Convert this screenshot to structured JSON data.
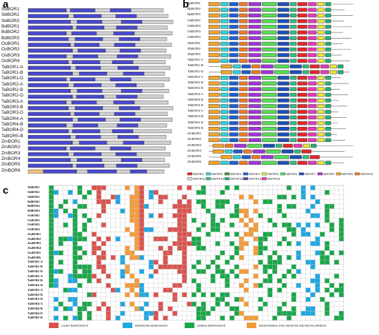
{
  "panels": {
    "a": "a",
    "b": "b",
    "c": "c"
  },
  "panel_a": {
    "genes": [
      "SbBOR1",
      "SbBOR2",
      "SbBOR3",
      "BdBOR1",
      "BdBOR2",
      "BdBOR3",
      "OsBOR1",
      "OsBOR2",
      "OsBOR3",
      "OsBOR4",
      "TaBOR1-A",
      "TaBOR1-B",
      "TaBOR1-D",
      "TaBOR2-A",
      "TaBOR2-B",
      "TaBOR2-D",
      "TaBOR3-A",
      "TaBOR3-B",
      "TaBOR3-D",
      "TaBOR4-A",
      "TaBOR4-B",
      "TaBOR4-D",
      "TaBOR5-B",
      "ZmBOR1",
      "ZmBOR2",
      "ZmBOR3",
      "ZmBOR4",
      "ZmBOR5",
      "ZmBOR6"
    ]
  },
  "panel_b": {
    "genes": [
      "BpBOR1",
      "BpBOR2",
      "BpBOR3",
      "OsBOR1",
      "OsBOR2",
      "OsBOR3",
      "OsBOR4",
      "SbBOR1",
      "SbBOR2",
      "SbBOR3",
      "TaBOR1-A",
      "TaBOR1-B",
      "TaBOR1-D",
      "TaBOR2-A",
      "TaBOR2-B",
      "TaBOR2-D",
      "TaBOR3-A",
      "TaBOR3-B",
      "TaBOR3-D",
      "TaBOR4-A",
      "TaBOR4-B",
      "TaBOR4-D",
      "TaBOR5-B",
      "ZmBOR1",
      "ZmBOR2",
      "ZmBOR3",
      "ZmBOR4",
      "ZmBOR5",
      "ZmBOR6"
    ],
    "motifs": [
      {
        "name": "MOTIF1",
        "color": "#e8262b"
      },
      {
        "name": "MOTIF2",
        "color": "#2fd4d9"
      },
      {
        "name": "MOTIF3",
        "color": "#3a9b2c"
      },
      {
        "name": "MOTIF4",
        "color": "#1f5fd6"
      },
      {
        "name": "MOTIF5",
        "color": "#e8e83a"
      },
      {
        "name": "MOTIF6",
        "color": "#55dd55"
      },
      {
        "name": "MOTIF7",
        "color": "#1e50b8"
      },
      {
        "name": "MOTIF8",
        "color": "#a235d8"
      },
      {
        "name": "MOTIF9",
        "color": "#f2a52e"
      },
      {
        "name": "MOTIF10",
        "color": "#f07a2a"
      },
      {
        "name": "MOTIF11",
        "color": "#e0e0e0"
      },
      {
        "name": "MOTIF12",
        "color": "#31c27a"
      },
      {
        "name": "MOTIF13",
        "color": "#1bb37a"
      },
      {
        "name": "MOTIF14",
        "color": "#6a3ea8"
      },
      {
        "name": "MOTIF15",
        "color": "#e83ab8"
      }
    ]
  },
  "panel_c": {
    "genes": [
      "SbBOR1",
      "SbBOR2",
      "SbBOR3",
      "BdBOR1",
      "BdBOR2",
      "BdBOR3",
      "OsBOR1",
      "OsBOR2",
      "OsBOR3",
      "OsBOR4",
      "ZmBOR1",
      "ZmBOR2",
      "ZmBOR3",
      "ZmBOR4",
      "ZmBOR5",
      "ZmBOR6",
      "TaBOR1-A",
      "TaBOR1-B",
      "TaBOR1-D",
      "TaBOR2-A",
      "TaBOR2-B",
      "TaBOR2-D",
      "TaBOR3-A",
      "TaBOR3-B",
      "TaBOR3-D",
      "TaBOR4-A",
      "TaBOR4-B",
      "TaBOR4-D",
      "TaBOR5-B"
    ],
    "categories": [
      {
        "name": "LIGHT RESPONSIVE",
        "color": "#d9534f"
      },
      {
        "name": "HORMONE RESPONSIVE",
        "color": "#1ea7e1"
      },
      {
        "name": "STRESS RESPONSIVE",
        "color": "#1aa64a"
      },
      {
        "name": "RESPONSIBLE FOR GROWTH AND DEVELOPMENT",
        "color": "#f39a3a"
      }
    ]
  },
  "colors": {
    "exon": "#4a4ad0",
    "intron": "#d0d0d0",
    "grid": "#c8c8c8"
  }
}
